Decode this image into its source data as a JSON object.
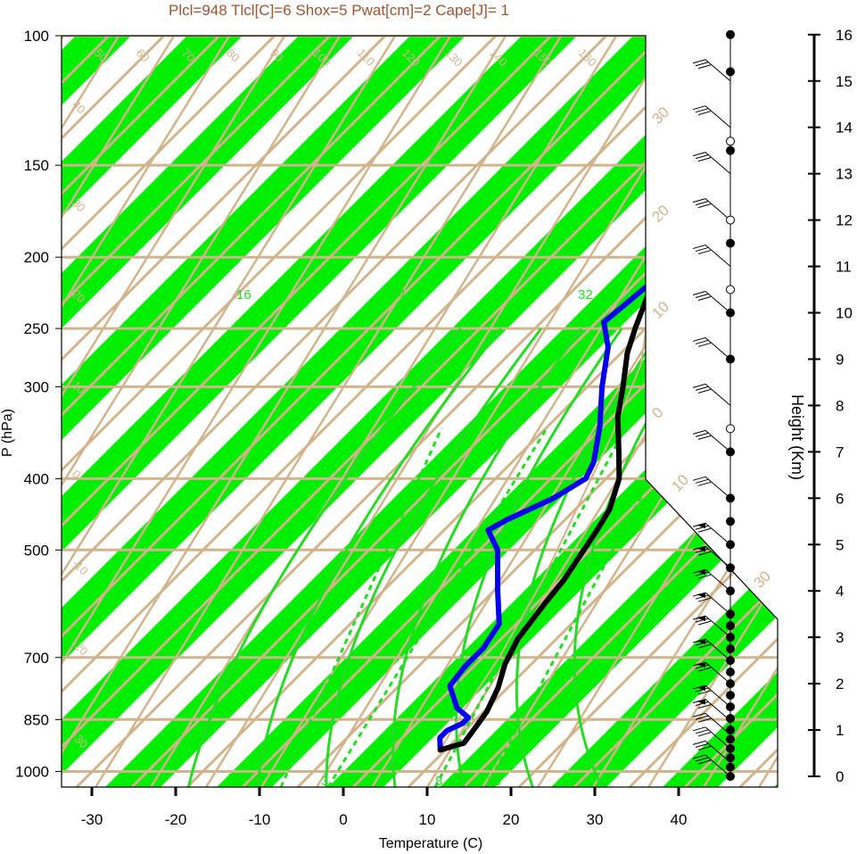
{
  "title": "Plcl=948 Tlcl[C]=6 Shox=5 Pwat[cm]=2 Cape[J]= 1",
  "colors": {
    "band": "#00ee00",
    "grid": "#d2b48c",
    "temperature": "#000000",
    "dewpoint": "#0000ee",
    "moist_adiabat": "#22dd22",
    "title": "#a0522d",
    "parcel": "#d2b48c"
  },
  "chart_data": {
    "type": "line",
    "title": "Plcl=948 Tlcl[C]=6 Shox=5 Pwat[cm]=2 Cape[J]= 1",
    "xlabel": "Temperature (C)",
    "ylabel": "P (hPa)",
    "y2label": "Height (Km)",
    "x_ticks": [
      "-30",
      "-20",
      "-10",
      "0",
      "10",
      "20",
      "30",
      "40"
    ],
    "y_ticks": [
      "100",
      "150",
      "200",
      "250",
      "300",
      "400",
      "500",
      "700",
      "850",
      "1000"
    ],
    "height_ticks": [
      "0",
      "1",
      "2",
      "3",
      "4",
      "5",
      "6",
      "7",
      "8",
      "9",
      "10",
      "11",
      "12",
      "13",
      "14",
      "15",
      "16"
    ],
    "isotherm_labels": [
      "50",
      "60",
      "70",
      "80",
      "90",
      "100",
      "110",
      "120",
      "130",
      "140",
      "150",
      "160",
      "40",
      "30",
      "20",
      "10",
      "0",
      "-10",
      "-20",
      "-30"
    ],
    "skew_labels": [
      "30",
      "20",
      "10",
      "0",
      "10",
      "30"
    ],
    "mixing_labels": [
      "16",
      "24",
      "32",
      "3",
      "8",
      "13"
    ],
    "series": [
      {
        "name": "Temperature",
        "points": [
          {
            "t": 9.0,
            "p": 935
          },
          {
            "t": 11.0,
            "p": 915
          },
          {
            "t": 10.5,
            "p": 870
          },
          {
            "t": 10.0,
            "p": 830
          },
          {
            "t": 8.5,
            "p": 770
          },
          {
            "t": 6.5,
            "p": 715
          },
          {
            "t": 5.0,
            "p": 660
          },
          {
            "t": 4.0,
            "p": 590
          },
          {
            "t": 3.5,
            "p": 550
          },
          {
            "t": 1.5,
            "p": 470
          },
          {
            "t": 0.5,
            "p": 440
          },
          {
            "t": -2.0,
            "p": 400
          },
          {
            "t": -5.0,
            "p": 370
          },
          {
            "t": -9.5,
            "p": 330
          },
          {
            "t": -12.5,
            "p": 300
          },
          {
            "t": -16.0,
            "p": 270
          },
          {
            "t": -18.0,
            "p": 250
          },
          {
            "t": -21.0,
            "p": 220
          },
          {
            "t": -23.5,
            "p": 200
          },
          {
            "t": -22.5,
            "p": 185
          },
          {
            "t": -16.0,
            "p": 170
          },
          {
            "t": -7.5,
            "p": 155
          },
          {
            "t": 0.0,
            "p": 140
          },
          {
            "t": 5.0,
            "p": 127
          },
          {
            "t": 8.0,
            "p": 120
          },
          {
            "t": 11.0,
            "p": 113
          }
        ]
      },
      {
        "name": "Dew point",
        "points": [
          {
            "t": 9.0,
            "p": 935
          },
          {
            "t": 7.5,
            "p": 900
          },
          {
            "t": 7.5,
            "p": 880
          },
          {
            "t": 8.5,
            "p": 860
          },
          {
            "t": 8.5,
            "p": 845
          },
          {
            "t": 6.0,
            "p": 820
          },
          {
            "t": 2.5,
            "p": 765
          },
          {
            "t": 2.0,
            "p": 720
          },
          {
            "t": 2.0,
            "p": 680
          },
          {
            "t": 1.0,
            "p": 630
          },
          {
            "t": -3.0,
            "p": 570
          },
          {
            "t": -8.0,
            "p": 500
          },
          {
            "t": -11.5,
            "p": 470
          },
          {
            "t": -10.5,
            "p": 455
          },
          {
            "t": -7.5,
            "p": 425
          },
          {
            "t": -6.0,
            "p": 400
          },
          {
            "t": -7.0,
            "p": 380
          },
          {
            "t": -10.5,
            "p": 340
          },
          {
            "t": -15.0,
            "p": 300
          },
          {
            "t": -19.0,
            "p": 265
          },
          {
            "t": -22.5,
            "p": 245
          },
          {
            "t": -22.0,
            "p": 230
          },
          {
            "t": -21.5,
            "p": 215
          },
          {
            "t": -21.5,
            "p": 195
          },
          {
            "t": -21.5,
            "p": 175
          },
          {
            "t": -23.0,
            "p": 155
          },
          {
            "t": -24.0,
            "p": 140
          },
          {
            "t": -20.5,
            "p": 127
          },
          {
            "t": -16.5,
            "p": 120
          },
          {
            "t": -12.5,
            "p": 112
          }
        ]
      },
      {
        "name": "Parcel",
        "points": [
          {
            "t": 9.0,
            "p": 935
          },
          {
            "t": 7.5,
            "p": 850
          },
          {
            "t": 5.0,
            "p": 700
          },
          {
            "t": 1.0,
            "p": 550
          },
          {
            "t": -3.0,
            "p": 450
          },
          {
            "t": -8.0,
            "p": 350
          },
          {
            "t": -13.0,
            "p": 280
          },
          {
            "t": -18.0,
            "p": 240
          }
        ]
      }
    ],
    "wind_profile": {
      "dots_km": [
        0.0,
        0.2,
        0.4,
        0.6,
        0.8,
        1.0,
        1.25,
        1.5,
        1.75,
        2.0,
        2.25,
        2.5,
        2.75,
        3.0,
        3.25,
        3.5,
        4.0,
        4.5,
        5.0,
        5.5,
        6.0,
        7.0,
        7.5,
        9.0,
        10.0,
        10.5,
        11.5,
        12.0,
        13.5,
        13.7,
        15.2,
        16.0
      ],
      "barbs_km": [
        0.0,
        0.3,
        0.6,
        0.9,
        1.2,
        1.5,
        2.0,
        2.5,
        3.0,
        3.5,
        4.0,
        4.5,
        5.0,
        6.0,
        7.0,
        8.0,
        9.0,
        10.0,
        11.0,
        12.0,
        13.0,
        14.0,
        15.0
      ]
    }
  }
}
